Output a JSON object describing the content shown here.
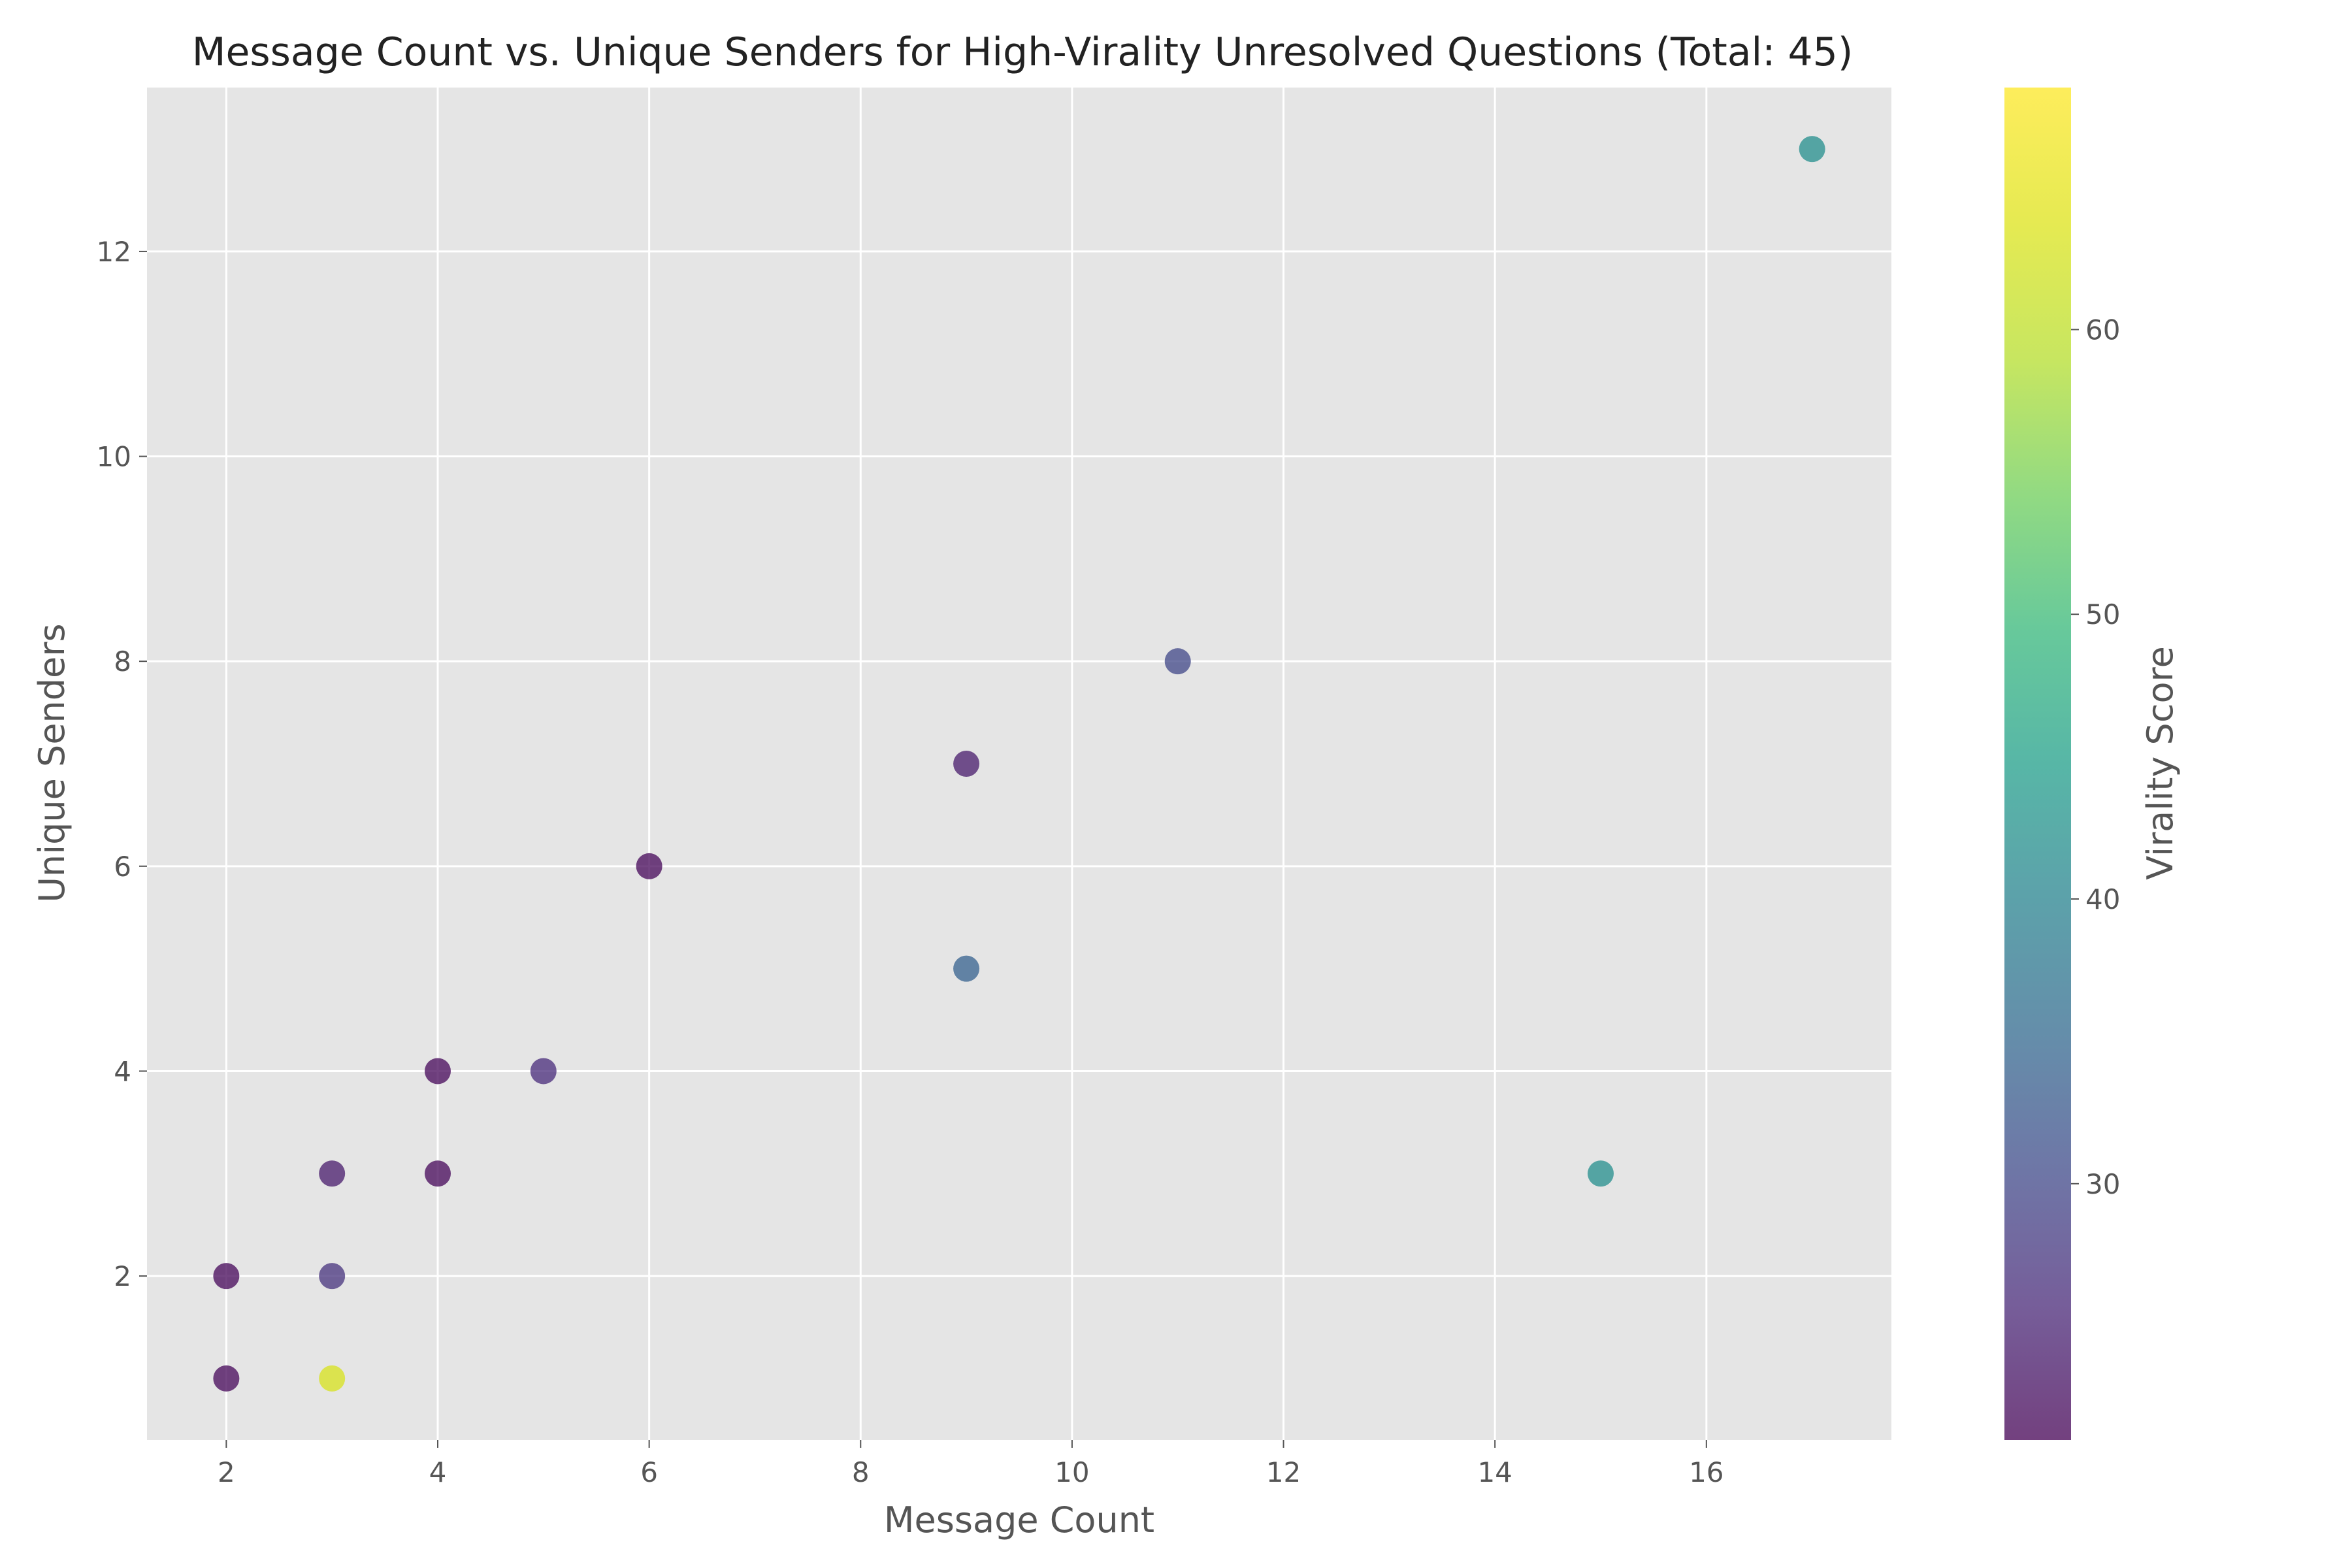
{
  "chart_data": {
    "type": "scatter",
    "title": "Message Count vs. Unique Senders for High-Virality Unresolved Questions (Total: 45)",
    "xlabel": "Message Count",
    "ylabel": "Unique Senders",
    "xlim": [
      1.25,
      17.75
    ],
    "ylim": [
      0.4,
      13.6
    ],
    "xticks": [
      2,
      4,
      6,
      8,
      10,
      12,
      14,
      16
    ],
    "yticks": [
      2,
      4,
      6,
      8,
      10,
      12
    ],
    "grid": true,
    "colorbar": {
      "label": "Virality Score",
      "colormap": "viridis",
      "range": [
        21,
        68.5
      ],
      "ticks": [
        30,
        40,
        50,
        60
      ]
    },
    "points": [
      {
        "x": 2,
        "y": 1,
        "virality": 21.5
      },
      {
        "x": 2,
        "y": 2,
        "virality": 21.5
      },
      {
        "x": 3,
        "y": 1,
        "virality": 63
      },
      {
        "x": 3,
        "y": 2,
        "virality": 27
      },
      {
        "x": 3,
        "y": 3,
        "virality": 24
      },
      {
        "x": 4,
        "y": 3,
        "virality": 21.5
      },
      {
        "x": 4,
        "y": 4,
        "virality": 21.5
      },
      {
        "x": 5,
        "y": 4,
        "virality": 26
      },
      {
        "x": 6,
        "y": 6,
        "virality": 21.5
      },
      {
        "x": 9,
        "y": 5,
        "virality": 34
      },
      {
        "x": 9,
        "y": 7,
        "virality": 24
      },
      {
        "x": 11,
        "y": 8,
        "virality": 30
      },
      {
        "x": 15,
        "y": 3,
        "virality": 42
      },
      {
        "x": 17,
        "y": 13,
        "virality": 42
      }
    ]
  }
}
